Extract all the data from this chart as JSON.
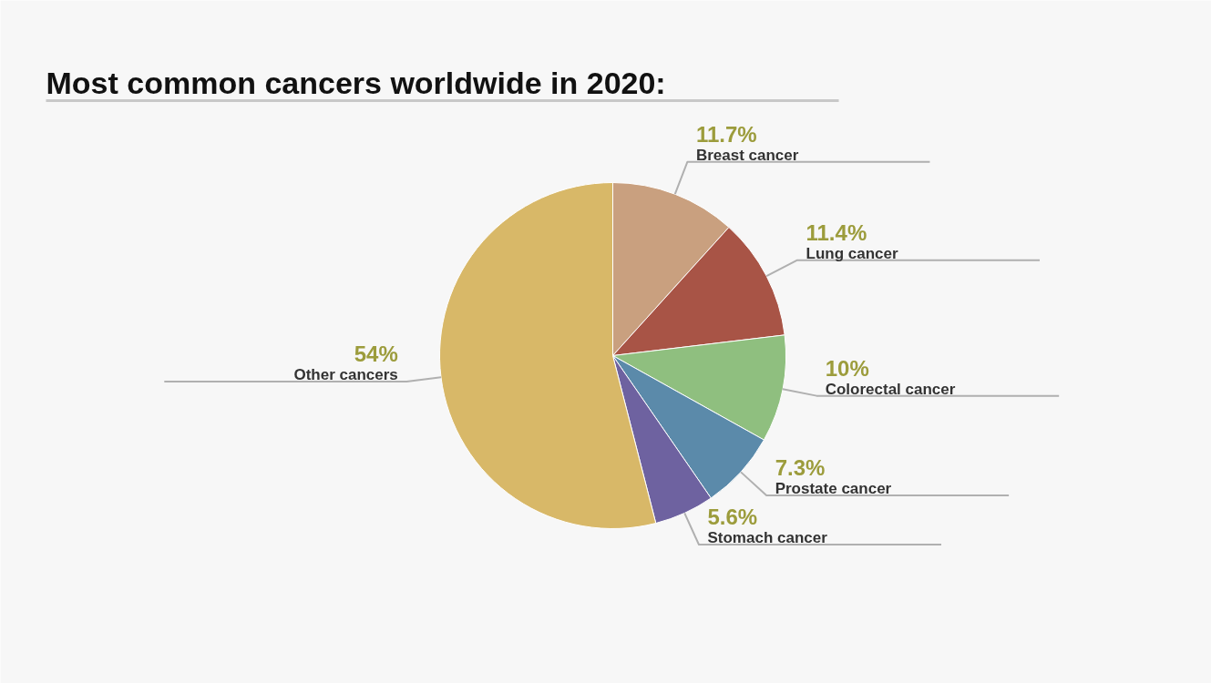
{
  "chart_data": {
    "type": "pie",
    "title": "Most common cancers worldwide in 2020:",
    "categories": [
      "Breast cancer",
      "Lung cancer",
      "Colorectal cancer",
      "Prostate cancer",
      "Stomach cancer",
      "Other cancers"
    ],
    "values": [
      11.7,
      11.4,
      10,
      7.3,
      5.6,
      54
    ],
    "colors": [
      "#c9a07f",
      "#a85446",
      "#8fbf7f",
      "#5b8aaa",
      "#6e62a0",
      "#d8b868"
    ],
    "value_labels": [
      "11.7%",
      "11.4%",
      "10%",
      "7.3%",
      "5.6%",
      "54%"
    ],
    "legend": false
  }
}
